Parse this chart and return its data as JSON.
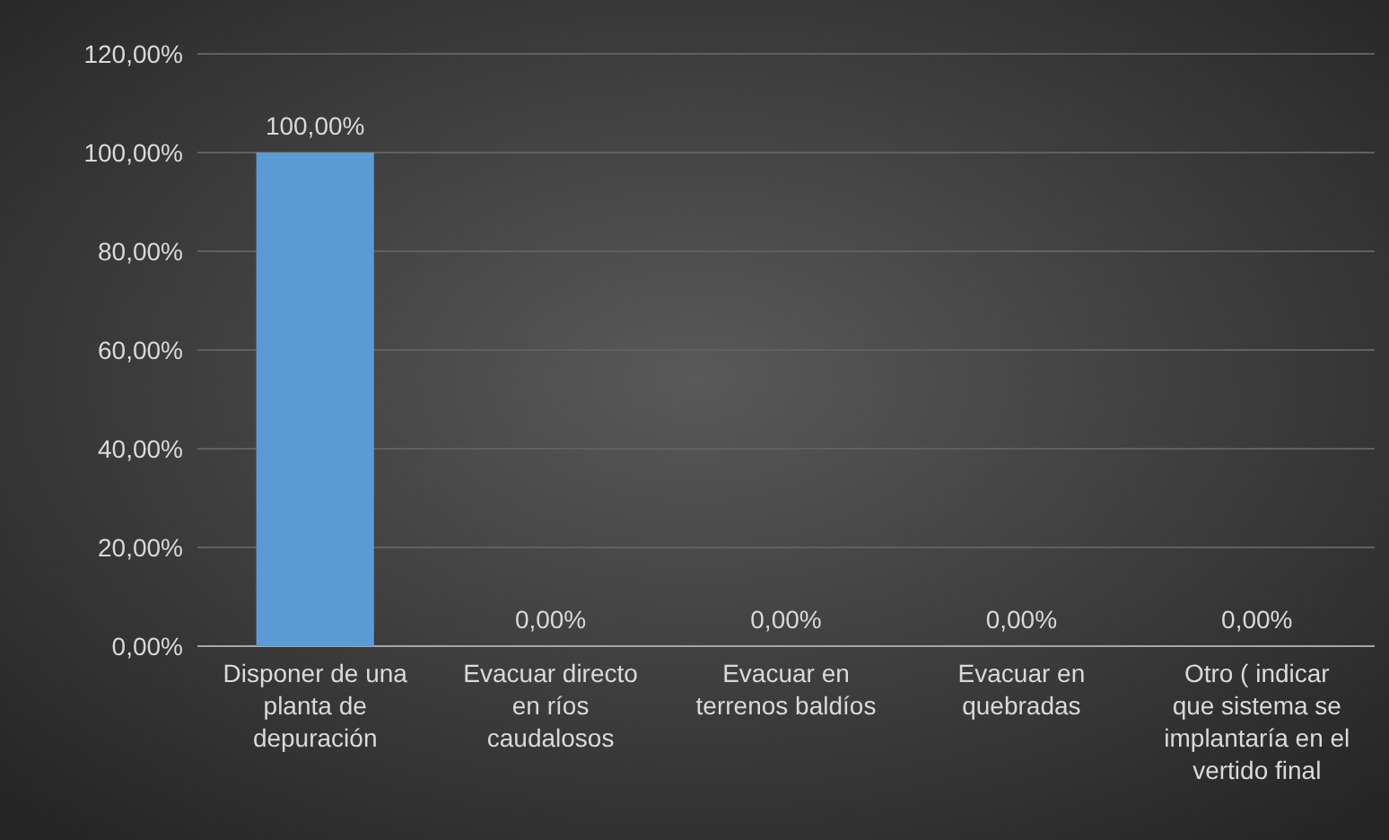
{
  "chart_data": {
    "type": "bar",
    "categories": [
      "Disponer de una planta de depuración",
      "Evacuar directo en ríos caudalosos",
      "Evacuar en terrenos baldíos",
      "Evacuar en quebradas",
      "Otro ( indicar que sistema se implantaría en el vertido final"
    ],
    "values": [
      100,
      0,
      0,
      0,
      0
    ],
    "value_labels": [
      "100,00%",
      "0,00%",
      "0,00%",
      "0,00%",
      "0,00%"
    ],
    "color": "#5b9bd5",
    "ylim": [
      0,
      120
    ],
    "yticks": [
      {
        "value": 0,
        "label": "0,00%"
      },
      {
        "value": 20,
        "label": "20,00%"
      },
      {
        "value": 40,
        "label": "40,00%"
      },
      {
        "value": 60,
        "label": "60,00%"
      },
      {
        "value": 80,
        "label": "80,00%"
      },
      {
        "value": 100,
        "label": "100,00%"
      },
      {
        "value": 120,
        "label": "120,00%"
      }
    ],
    "grid": "y"
  }
}
